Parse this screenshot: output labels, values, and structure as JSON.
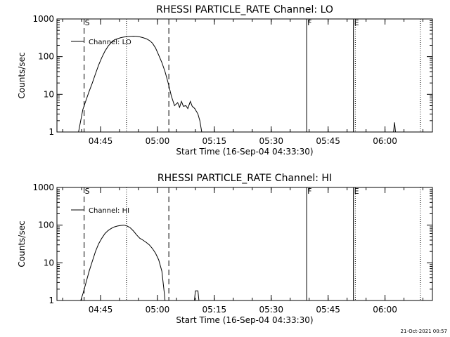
{
  "footer": {
    "timestamp": "21-Oct-2021 00:57"
  },
  "chart_data": [
    {
      "type": "line",
      "y_scale": "log",
      "title": "RHESSI PARTICLE_RATE Channel: LO",
      "xlabel": "Start Time (16-Sep-04 04:33:30)",
      "ylabel": "Counts/sec",
      "x_ticks": [
        "04:45",
        "05:00",
        "05:15",
        "05:30",
        "05:45",
        "06:00"
      ],
      "y_ticks": [
        "1",
        "10",
        "100",
        "1000"
      ],
      "xlim": [
        "04:33:30",
        "06:12:30"
      ],
      "ylim": [
        1,
        1000
      ],
      "legend": {
        "position": "top-left",
        "entries": [
          "Channel: LO"
        ]
      },
      "markers": [
        {
          "time": "04:40:40",
          "style": "dashed",
          "label": "S"
        },
        {
          "time": "05:03:00",
          "style": "dashed",
          "label": ""
        },
        {
          "time": "04:51:50",
          "style": "dotted",
          "label": ""
        },
        {
          "time": "05:39:20",
          "style": "solid",
          "label": "F"
        },
        {
          "time": "05:51:40",
          "style": "solid",
          "label": "E"
        },
        {
          "time": "05:52:10",
          "style": "dotted",
          "label": ""
        },
        {
          "time": "06:09:20",
          "style": "dotted",
          "label": ""
        }
      ],
      "series": [
        {
          "name": "Channel: LO",
          "segments": [
            [
              [
                "04:38:56",
                0.85
              ],
              [
                "04:39:12",
                1
              ],
              [
                "04:39:46",
                2
              ],
              [
                "04:40:20",
                4
              ],
              [
                "04:41:10",
                7
              ],
              [
                "04:42:00",
                12
              ],
              [
                "04:42:50",
                20
              ],
              [
                "04:43:40",
                35
              ],
              [
                "04:44:30",
                60
              ],
              [
                "04:45:20",
                95
              ],
              [
                "04:46:10",
                140
              ],
              [
                "04:47:00",
                190
              ],
              [
                "04:47:50",
                240
              ],
              [
                "04:48:40",
                280
              ],
              [
                "04:49:30",
                300
              ],
              [
                "04:50:20",
                320
              ],
              [
                "04:51:10",
                330
              ],
              [
                "04:52:00",
                340
              ],
              [
                "04:52:50",
                345
              ],
              [
                "04:53:40",
                350
              ],
              [
                "04:54:30",
                345
              ],
              [
                "04:55:20",
                335
              ],
              [
                "04:56:10",
                320
              ],
              [
                "04:57:00",
                300
              ],
              [
                "04:57:50",
                270
              ],
              [
                "04:58:40",
                230
              ],
              [
                "04:59:30",
                170
              ],
              [
                "05:00:20",
                110
              ],
              [
                "05:01:10",
                70
              ],
              [
                "05:02:00",
                40
              ],
              [
                "05:02:50",
                20
              ],
              [
                "05:03:40",
                9
              ],
              [
                "05:04:30",
                5
              ],
              [
                "05:05:20",
                6
              ],
              [
                "05:05:50",
                4.5
              ],
              [
                "05:06:20",
                6.5
              ],
              [
                "05:06:50",
                4.8
              ],
              [
                "05:07:30",
                5
              ],
              [
                "05:08:00",
                4.2
              ],
              [
                "05:08:40",
                6.5
              ],
              [
                "05:09:10",
                4.8
              ],
              [
                "05:09:50",
                4.2
              ],
              [
                "05:10:40",
                3
              ],
              [
                "05:11:10",
                2
              ],
              [
                "05:11:40",
                1
              ],
              [
                "05:11:50",
                0.85
              ]
            ],
            [
              [
                "06:02:10",
                0.85
              ],
              [
                "06:02:30",
                1.8
              ],
              [
                "06:02:50",
                0.85
              ]
            ]
          ]
        }
      ]
    },
    {
      "type": "line",
      "y_scale": "log",
      "title": "RHESSI PARTICLE_RATE Channel: HI",
      "xlabel": "Start Time (16-Sep-04 04:33:30)",
      "ylabel": "Counts/sec",
      "x_ticks": [
        "04:45",
        "05:00",
        "05:15",
        "05:30",
        "05:45",
        "06:00"
      ],
      "y_ticks": [
        "1",
        "10",
        "100",
        "1000"
      ],
      "xlim": [
        "04:33:30",
        "06:12:30"
      ],
      "ylim": [
        1,
        1000
      ],
      "legend": {
        "position": "top-left",
        "entries": [
          "Channel: HI"
        ]
      },
      "markers": [
        {
          "time": "04:40:40",
          "style": "dashed",
          "label": "S"
        },
        {
          "time": "05:03:00",
          "style": "dashed",
          "label": ""
        },
        {
          "time": "04:51:50",
          "style": "dotted",
          "label": ""
        },
        {
          "time": "05:39:20",
          "style": "solid",
          "label": "F"
        },
        {
          "time": "05:51:40",
          "style": "solid",
          "label": "E"
        },
        {
          "time": "05:52:10",
          "style": "dotted",
          "label": ""
        },
        {
          "time": "06:09:20",
          "style": "dotted",
          "label": ""
        }
      ],
      "series": [
        {
          "name": "Channel: HI",
          "segments": [
            [
              [
                "04:39:12",
                0.85
              ],
              [
                "04:39:46",
                1
              ],
              [
                "04:40:20",
                1.5
              ],
              [
                "04:41:10",
                3
              ],
              [
                "04:42:00",
                6
              ],
              [
                "04:42:50",
                11
              ],
              [
                "04:43:40",
                20
              ],
              [
                "04:44:30",
                32
              ],
              [
                "04:45:20",
                45
              ],
              [
                "04:46:10",
                60
              ],
              [
                "04:47:00",
                72
              ],
              [
                "04:47:50",
                82
              ],
              [
                "04:48:40",
                90
              ],
              [
                "04:49:30",
                95
              ],
              [
                "04:50:20",
                98
              ],
              [
                "04:51:10",
                100
              ],
              [
                "04:52:00",
                95
              ],
              [
                "04:52:50",
                85
              ],
              [
                "04:53:40",
                70
              ],
              [
                "04:54:30",
                55
              ],
              [
                "04:55:20",
                45
              ],
              [
                "04:56:10",
                40
              ],
              [
                "04:57:00",
                35
              ],
              [
                "04:57:50",
                30
              ],
              [
                "04:58:40",
                24
              ],
              [
                "04:59:30",
                18
              ],
              [
                "05:00:20",
                12
              ],
              [
                "05:01:10",
                6
              ],
              [
                "05:01:30",
                3
              ],
              [
                "05:01:50",
                1.5
              ],
              [
                "05:02:00",
                1
              ],
              [
                "05:02:10",
                0.85
              ]
            ],
            [
              [
                "05:09:40",
                0.85
              ],
              [
                "05:10:00",
                1.8
              ],
              [
                "05:10:40",
                1.8
              ],
              [
                "05:11:00",
                0.85
              ]
            ]
          ]
        }
      ]
    }
  ]
}
